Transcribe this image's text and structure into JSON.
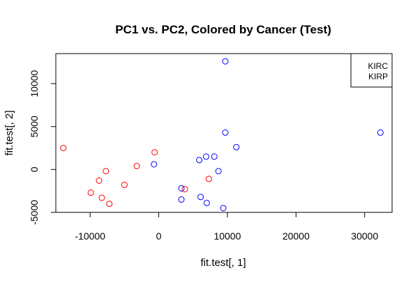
{
  "chart_data": {
    "type": "scatter",
    "title": "PC1 vs. PC2, Colored by Cancer (Test)",
    "xlabel": "fit.test[, 1]",
    "ylabel": "fit.test[, 2]",
    "xlim": [
      -15000,
      34000
    ],
    "ylim": [
      -5000,
      13500
    ],
    "xticks": [
      -10000,
      0,
      10000,
      20000,
      30000
    ],
    "yticks": [
      -5000,
      0,
      5000,
      10000
    ],
    "xtick_labels": [
      "-10000",
      "0",
      "10000",
      "20000",
      "30000"
    ],
    "ytick_labels": [
      "-5000",
      "0",
      "5000",
      "10000"
    ],
    "grid": false,
    "legend_position": "top-right",
    "series": [
      {
        "name": "KIRC",
        "color": "#ff0000",
        "marker": "open-circle",
        "points": [
          [
            -13900,
            2500
          ],
          [
            -9900,
            -2700
          ],
          [
            -8700,
            -1300
          ],
          [
            -8300,
            -3300
          ],
          [
            -7700,
            -200
          ],
          [
            -7200,
            -4000
          ],
          [
            -5000,
            -1800
          ],
          [
            -3200,
            400
          ],
          [
            -600,
            2000
          ],
          [
            3800,
            -2300
          ],
          [
            7300,
            -1100
          ]
        ]
      },
      {
        "name": "KIRP",
        "color": "#0000ff",
        "marker": "open-circle",
        "points": [
          [
            -700,
            600
          ],
          [
            3300,
            -2200
          ],
          [
            3300,
            -3500
          ],
          [
            5900,
            1100
          ],
          [
            6100,
            -3200
          ],
          [
            6900,
            1500
          ],
          [
            7000,
            -3900
          ],
          [
            8100,
            1500
          ],
          [
            8700,
            -200
          ],
          [
            9400,
            -4500
          ],
          [
            9700,
            12600
          ],
          [
            9700,
            4300
          ],
          [
            11300,
            2600
          ],
          [
            32300,
            4300
          ]
        ]
      }
    ]
  }
}
